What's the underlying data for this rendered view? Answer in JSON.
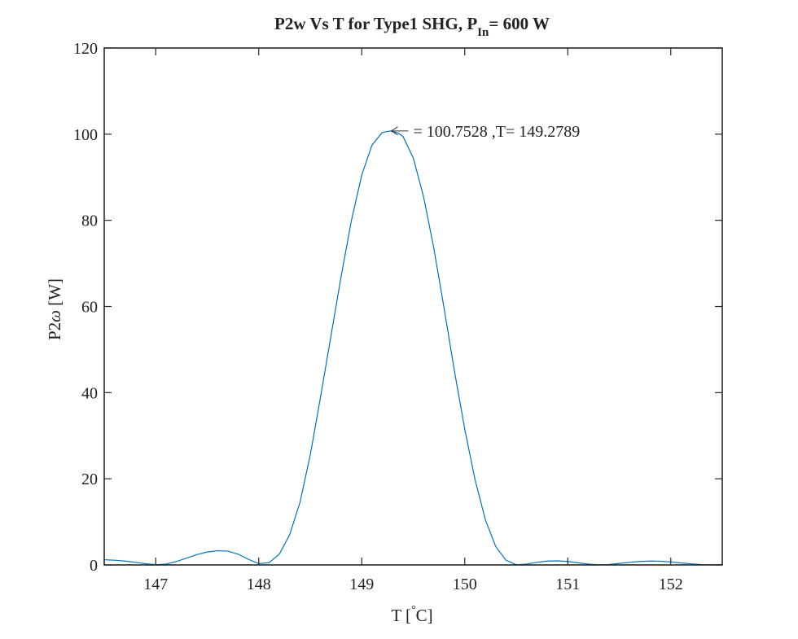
{
  "chart_data": {
    "type": "line",
    "title": {
      "main": "P2w Vs T for Type1 SHG, P",
      "subscript": "In",
      "suffix": "= 600 W"
    },
    "xlabel": {
      "prefix": "T [",
      "degree": "°",
      "suffix": "C]"
    },
    "ylabel": {
      "prefix": "P2",
      "symbol": "ω",
      "suffix": " [W]"
    },
    "xlim": [
      146.5,
      152.5
    ],
    "ylim": [
      0,
      120
    ],
    "xticks": [
      147,
      148,
      149,
      150,
      151,
      152
    ],
    "xtick_labels": [
      "147",
      "148",
      "149",
      "150",
      "151",
      "152"
    ],
    "yticks": [
      0,
      20,
      40,
      60,
      80,
      100,
      120
    ],
    "ytick_labels": [
      "0",
      "20",
      "40",
      "60",
      "80",
      "100",
      "120"
    ],
    "grid": false,
    "series": [
      {
        "color": "#0072BD",
        "x": [
          146.5,
          146.6,
          146.7,
          146.8,
          146.9,
          147.0,
          147.1,
          147.2,
          147.3,
          147.4,
          147.5,
          147.6,
          147.7,
          147.8,
          147.9,
          148.0,
          148.1,
          148.2,
          148.3,
          148.4,
          148.5,
          148.6,
          148.7,
          148.8,
          148.9,
          149.0,
          149.1,
          149.2,
          149.28,
          149.35,
          149.4,
          149.5,
          149.6,
          149.7,
          149.8,
          149.9,
          150.0,
          150.1,
          150.2,
          150.3,
          150.4,
          150.5,
          150.6,
          150.7,
          150.8,
          150.9,
          151.0,
          151.1,
          151.2,
          151.3,
          151.4,
          151.5,
          151.6,
          151.7,
          151.8,
          151.9,
          152.0,
          152.1,
          152.2,
          152.3,
          152.4,
          152.5
        ],
        "y": [
          1.2,
          1.1,
          0.9,
          0.6,
          0.3,
          0.05,
          0.2,
          0.8,
          1.6,
          2.4,
          3.0,
          3.3,
          3.2,
          2.5,
          1.3,
          0.3,
          0.5,
          2.5,
          7.0,
          14.5,
          25.5,
          39.0,
          53.0,
          67.0,
          80.0,
          90.5,
          97.5,
          100.4,
          100.75,
          100.3,
          99.5,
          94.5,
          85.5,
          73.5,
          59.5,
          45.0,
          31.5,
          19.8,
          10.5,
          4.3,
          1.1,
          0.05,
          0.2,
          0.6,
          0.9,
          0.95,
          0.8,
          0.5,
          0.2,
          0.03,
          0.1,
          0.35,
          0.6,
          0.8,
          0.9,
          0.85,
          0.7,
          0.45,
          0.25,
          0.08,
          0.02,
          0.1
        ]
      }
    ],
    "annotation": {
      "text": "= 100.7528 ,T= 149.2789",
      "x": 149.2789,
      "y": 100.7528
    }
  }
}
